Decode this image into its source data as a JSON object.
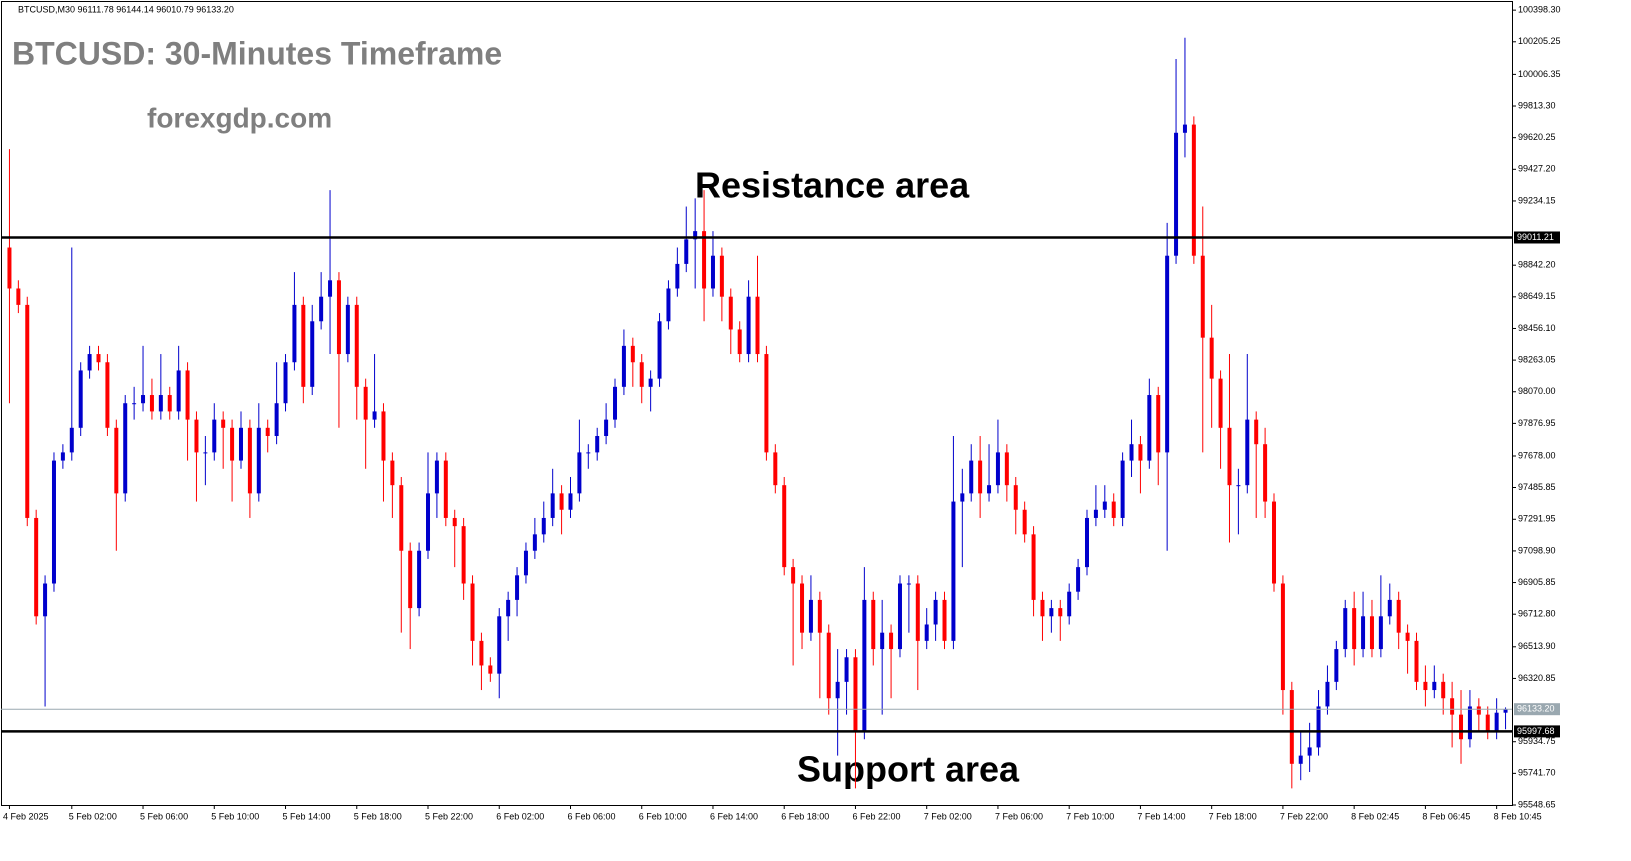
{
  "chart_data": {
    "type": "candlestick",
    "header": "BTCUSD,M30  96111.78 96144.14 96010.79 96133.20",
    "title": "BTCUSD: 30-Minutes Timeframe",
    "subtitle": "forexgdp.com",
    "annotations": [
      "Resistance area",
      "Support area"
    ],
    "up_color": "#0000cc",
    "down_color": "#ff0000",
    "ylim": [
      95548.65,
      100448
    ],
    "yticks": [
      {
        "value": 100398.3,
        "label": "100398.30"
      },
      100205.25,
      100006.35,
      {
        "value": 99813.3,
        "label": "99813.30"
      },
      99620.25,
      {
        "value": 99427.2,
        "label": "99427.20"
      },
      99234.15,
      {
        "value": 98842.2,
        "label": "98842.20"
      },
      98649.15,
      {
        "value": 98456.1,
        "label": "98456.10"
      },
      98263.05,
      {
        "value": 98070,
        "label": "98070.00"
      },
      97876.95,
      {
        "value": 97678,
        "label": "97678.00"
      },
      97485.85,
      97291.95,
      {
        "value": 97098.9,
        "label": "97098.90"
      },
      96905.85,
      {
        "value": 96712.8,
        "label": "96712.80"
      },
      {
        "value": 96513.9,
        "label": "96513.90"
      },
      96320.85,
      95934.75,
      {
        "value": 95741.7,
        "label": "95741.70"
      },
      95548.65
    ],
    "levels": [
      {
        "value": 99011.21,
        "color": "#000000"
      },
      {
        "value": 95997.68,
        "color": "#000000"
      },
      {
        "value": {
          "value": 96133.2,
          "label": "96133.20"
        },
        "color": "#9aa8b0"
      }
    ],
    "categories": [
      "4 Feb 2025",
      null,
      null,
      null,
      null,
      null,
      null,
      "5 Feb 02:00",
      null,
      null,
      null,
      null,
      null,
      null,
      null,
      "5 Feb 06:00",
      null,
      null,
      null,
      null,
      null,
      null,
      null,
      "5 Feb 10:00",
      null,
      null,
      null,
      null,
      null,
      null,
      null,
      "5 Feb 14:00",
      null,
      null,
      null,
      null,
      null,
      null,
      null,
      "5 Feb 18:00",
      null,
      null,
      null,
      null,
      null,
      null,
      null,
      "5 Feb 22:00",
      null,
      null,
      null,
      null,
      null,
      null,
      null,
      "6 Feb 02:00",
      null,
      null,
      null,
      null,
      null,
      null,
      null,
      "6 Feb 06:00",
      null,
      null,
      null,
      null,
      null,
      null,
      null,
      "6 Feb 10:00",
      null,
      null,
      null,
      null,
      null,
      null,
      null,
      "6 Feb 14:00",
      null,
      null,
      null,
      null,
      null,
      null,
      null,
      "6 Feb 18:00",
      null,
      null,
      null,
      null,
      null,
      null,
      null,
      "6 Feb 22:00",
      null,
      null,
      null,
      null,
      null,
      null,
      null,
      "7 Feb 02:00",
      null,
      null,
      null,
      null,
      null,
      null,
      null,
      "7 Feb 06:00",
      null,
      null,
      null,
      null,
      null,
      null,
      null,
      "7 Feb 10:00",
      null,
      null,
      null,
      null,
      null,
      null,
      null,
      "7 Feb 14:00",
      null,
      null,
      null,
      null,
      null,
      null,
      null,
      "7 Feb 18:00",
      null,
      null,
      null,
      null,
      null,
      null,
      null,
      "7 Feb 22:00",
      null,
      null,
      null,
      null,
      null,
      null,
      null,
      "8 Feb 02:45",
      null,
      null,
      null,
      null,
      null,
      null,
      null,
      "8 Feb 06:45",
      null,
      null,
      null,
      null,
      null,
      null,
      null,
      "8 Feb 10:45",
      null
    ],
    "open": [
      98950,
      98700,
      98600,
      97300,
      96700,
      96900,
      97650,
      97700,
      97850,
      98200,
      98300,
      98250,
      97850,
      97450,
      98000,
      98000,
      98050,
      97950,
      98050,
      97950,
      98200,
      97900,
      97700,
      97700,
      97900,
      97850,
      97650,
      97850,
      97450,
      97850,
      97800,
      98000,
      98250,
      98600,
      98100,
      98500,
      98650,
      98750,
      98300,
      98600,
      98100,
      97900,
      97950,
      97650,
      97500,
      97100,
      96750,
      97100,
      97450,
      97650,
      97300,
      97250,
      96900,
      96550,
      96400,
      96350,
      96700,
      96800,
      96950,
      97100,
      97200,
      97300,
      97450,
      97350,
      97450,
      97700,
      97700,
      97800,
      97900,
      98100,
      98350,
      98250,
      98100,
      98150,
      98500,
      98700,
      98850,
      99000,
      99050,
      98700,
      98900,
      98650,
      98450,
      98300,
      98650,
      98300,
      97700,
      97500,
      97000,
      96900,
      96600,
      96800,
      96600,
      96200,
      96300,
      96450,
      96000,
      96800,
      96500,
      96600,
      96500,
      96900,
      96900,
      96550,
      96650,
      96800,
      96550,
      97400,
      97450,
      97650,
      97450,
      97500,
      97700,
      97500,
      97350,
      97200,
      96800,
      96700,
      96750,
      96700,
      96850,
      97000,
      97300,
      97350,
      97400,
      97300,
      97650,
      97750,
      97650,
      98050,
      97700,
      98900,
      99650,
      99700,
      98900,
      98400,
      98150,
      97850,
      97500,
      97500,
      97900,
      97750,
      97400,
      96900,
      96250,
      95800,
      95850,
      95900,
      96150,
      96300,
      96500,
      96750,
      96500,
      96700,
      96500,
      96700,
      96800,
      96600,
      96550,
      96300,
      96250,
      96300,
      96200,
      96100,
      95950,
      96150,
      96100,
      96000,
      96111.78
    ],
    "high": [
      99550,
      98750,
      98650,
      97350,
      96950,
      97700,
      97750,
      98950,
      98250,
      98350,
      98350,
      98300,
      97900,
      98050,
      98100,
      98350,
      98150,
      98300,
      98100,
      98350,
      98250,
      97950,
      97800,
      98000,
      97950,
      97900,
      97950,
      97900,
      98000,
      97900,
      98250,
      98300,
      98800,
      98650,
      98600,
      98800,
      99300,
      98800,
      98650,
      98650,
      98150,
      98300,
      98000,
      97700,
      97550,
      97150,
      97150,
      97700,
      97700,
      97700,
      97350,
      97300,
      96950,
      96600,
      96450,
      96750,
      96850,
      97000,
      97150,
      97300,
      97400,
      97600,
      97500,
      97550,
      97900,
      97750,
      97850,
      98000,
      98150,
      98450,
      98400,
      98300,
      98200,
      98550,
      98750,
      98950,
      99200,
      99250,
      99300,
      99050,
      98950,
      98700,
      98500,
      98750,
      98900,
      98350,
      97750,
      97550,
      97050,
      96950,
      96950,
      96850,
      96650,
      96500,
      96500,
      96500,
      97000,
      96850,
      96800,
      96650,
      96950,
      96950,
      96950,
      96750,
      96850,
      96850,
      97800,
      97600,
      97750,
      97800,
      97750,
      97900,
      97750,
      97550,
      97400,
      97250,
      96850,
      96800,
      96800,
      96900,
      97050,
      97350,
      97500,
      97500,
      97450,
      97700,
      97900,
      97800,
      98150,
      98100,
      99100,
      100100,
      100230,
      99750,
      99200,
      98600,
      98200,
      98300,
      97600,
      98300,
      97950,
      97850,
      97450,
      96950,
      96300,
      96000,
      96050,
      96250,
      96400,
      96550,
      96800,
      96850,
      96850,
      96800,
      96950,
      96900,
      96850,
      96650,
      96600,
      96400,
      96400,
      96350,
      96300,
      96250,
      96250,
      96200,
      96150,
      96200,
      96144.14
    ],
    "low": [
      98000,
      98550,
      97250,
      96650,
      96150,
      96850,
      97600,
      97650,
      97800,
      98150,
      98200,
      97800,
      97100,
      97400,
      97900,
      97950,
      97900,
      97900,
      97900,
      97900,
      97650,
      97400,
      97500,
      97650,
      97600,
      97400,
      97600,
      97300,
      97400,
      97700,
      97750,
      97950,
      98200,
      98000,
      98050,
      98450,
      98300,
      97850,
      98250,
      97900,
      97600,
      97850,
      97400,
      97300,
      96600,
      96500,
      96700,
      97050,
      97300,
      97250,
      97000,
      96800,
      96400,
      96250,
      96300,
      96200,
      96550,
      96700,
      96900,
      97050,
      97150,
      97250,
      97200,
      97300,
      97400,
      97600,
      97650,
      97750,
      97850,
      98050,
      98100,
      98000,
      97950,
      98100,
      98450,
      98650,
      98800,
      98700,
      98500,
      98650,
      98500,
      98300,
      98250,
      98250,
      98250,
      97650,
      97450,
      96950,
      96400,
      96500,
      96550,
      96200,
      96100,
      95850,
      96100,
      95650,
      95950,
      96400,
      96100,
      96200,
      96450,
      96600,
      96250,
      96500,
      96550,
      96500,
      96500,
      97000,
      97400,
      97300,
      97400,
      97450,
      97400,
      97200,
      97150,
      96700,
      96550,
      96600,
      96550,
      96650,
      96800,
      96950,
      97250,
      97300,
      97250,
      97250,
      97550,
      97450,
      97600,
      97500,
      97100,
      98850,
      99500,
      98850,
      97700,
      97850,
      97600,
      97150,
      97200,
      97450,
      97300,
      97300,
      96850,
      96100,
      95650,
      95700,
      95750,
      95850,
      96100,
      96250,
      96450,
      96400,
      96450,
      96450,
      96450,
      96650,
      96500,
      96350,
      96250,
      96150,
      96200,
      96100,
      95900,
      95800,
      95900,
      96000,
      95950,
      95950,
      96010.79
    ],
    "close": [
      98700,
      98600,
      97300,
      96700,
      96900,
      97650,
      97700,
      97850,
      98200,
      98300,
      98250,
      97850,
      97450,
      98000,
      98000,
      98050,
      97950,
      98050,
      97950,
      98200,
      97900,
      97700,
      97700,
      97900,
      97850,
      97650,
      97850,
      97450,
      97850,
      97800,
      98000,
      98250,
      98600,
      98100,
      98500,
      98650,
      98750,
      98300,
      98600,
      98100,
      97900,
      97950,
      97650,
      97500,
      97100,
      96750,
      97100,
      97450,
      97650,
      97300,
      97250,
      96900,
      96550,
      96400,
      96350,
      96700,
      96800,
      96950,
      97100,
      97200,
      97300,
      97450,
      97350,
      97450,
      97700,
      97700,
      97800,
      97900,
      98100,
      98350,
      98250,
      98100,
      98150,
      98500,
      98700,
      98850,
      99000,
      99050,
      98700,
      98900,
      98650,
      98450,
      98300,
      98650,
      98300,
      97700,
      97500,
      97000,
      96900,
      96600,
      96800,
      96600,
      96200,
      96300,
      96450,
      96000,
      96800,
      96500,
      96600,
      96500,
      96900,
      96900,
      96550,
      96650,
      96800,
      96550,
      97400,
      97450,
      97650,
      97450,
      97500,
      97700,
      97500,
      97350,
      97200,
      96800,
      96700,
      96750,
      96700,
      96850,
      97000,
      97300,
      97350,
      97400,
      97300,
      97650,
      97750,
      97650,
      98050,
      97700,
      98900,
      99650,
      99700,
      98900,
      98400,
      98150,
      97850,
      97500,
      97500,
      97900,
      97750,
      97400,
      96900,
      96250,
      95800,
      95850,
      95900,
      96150,
      96300,
      96500,
      96750,
      96500,
      96700,
      96500,
      96700,
      96800,
      96600,
      96550,
      96300,
      96250,
      96300,
      96200,
      96100,
      95950,
      96150,
      96100,
      96000,
      96111.78,
      96133.2
    ]
  }
}
